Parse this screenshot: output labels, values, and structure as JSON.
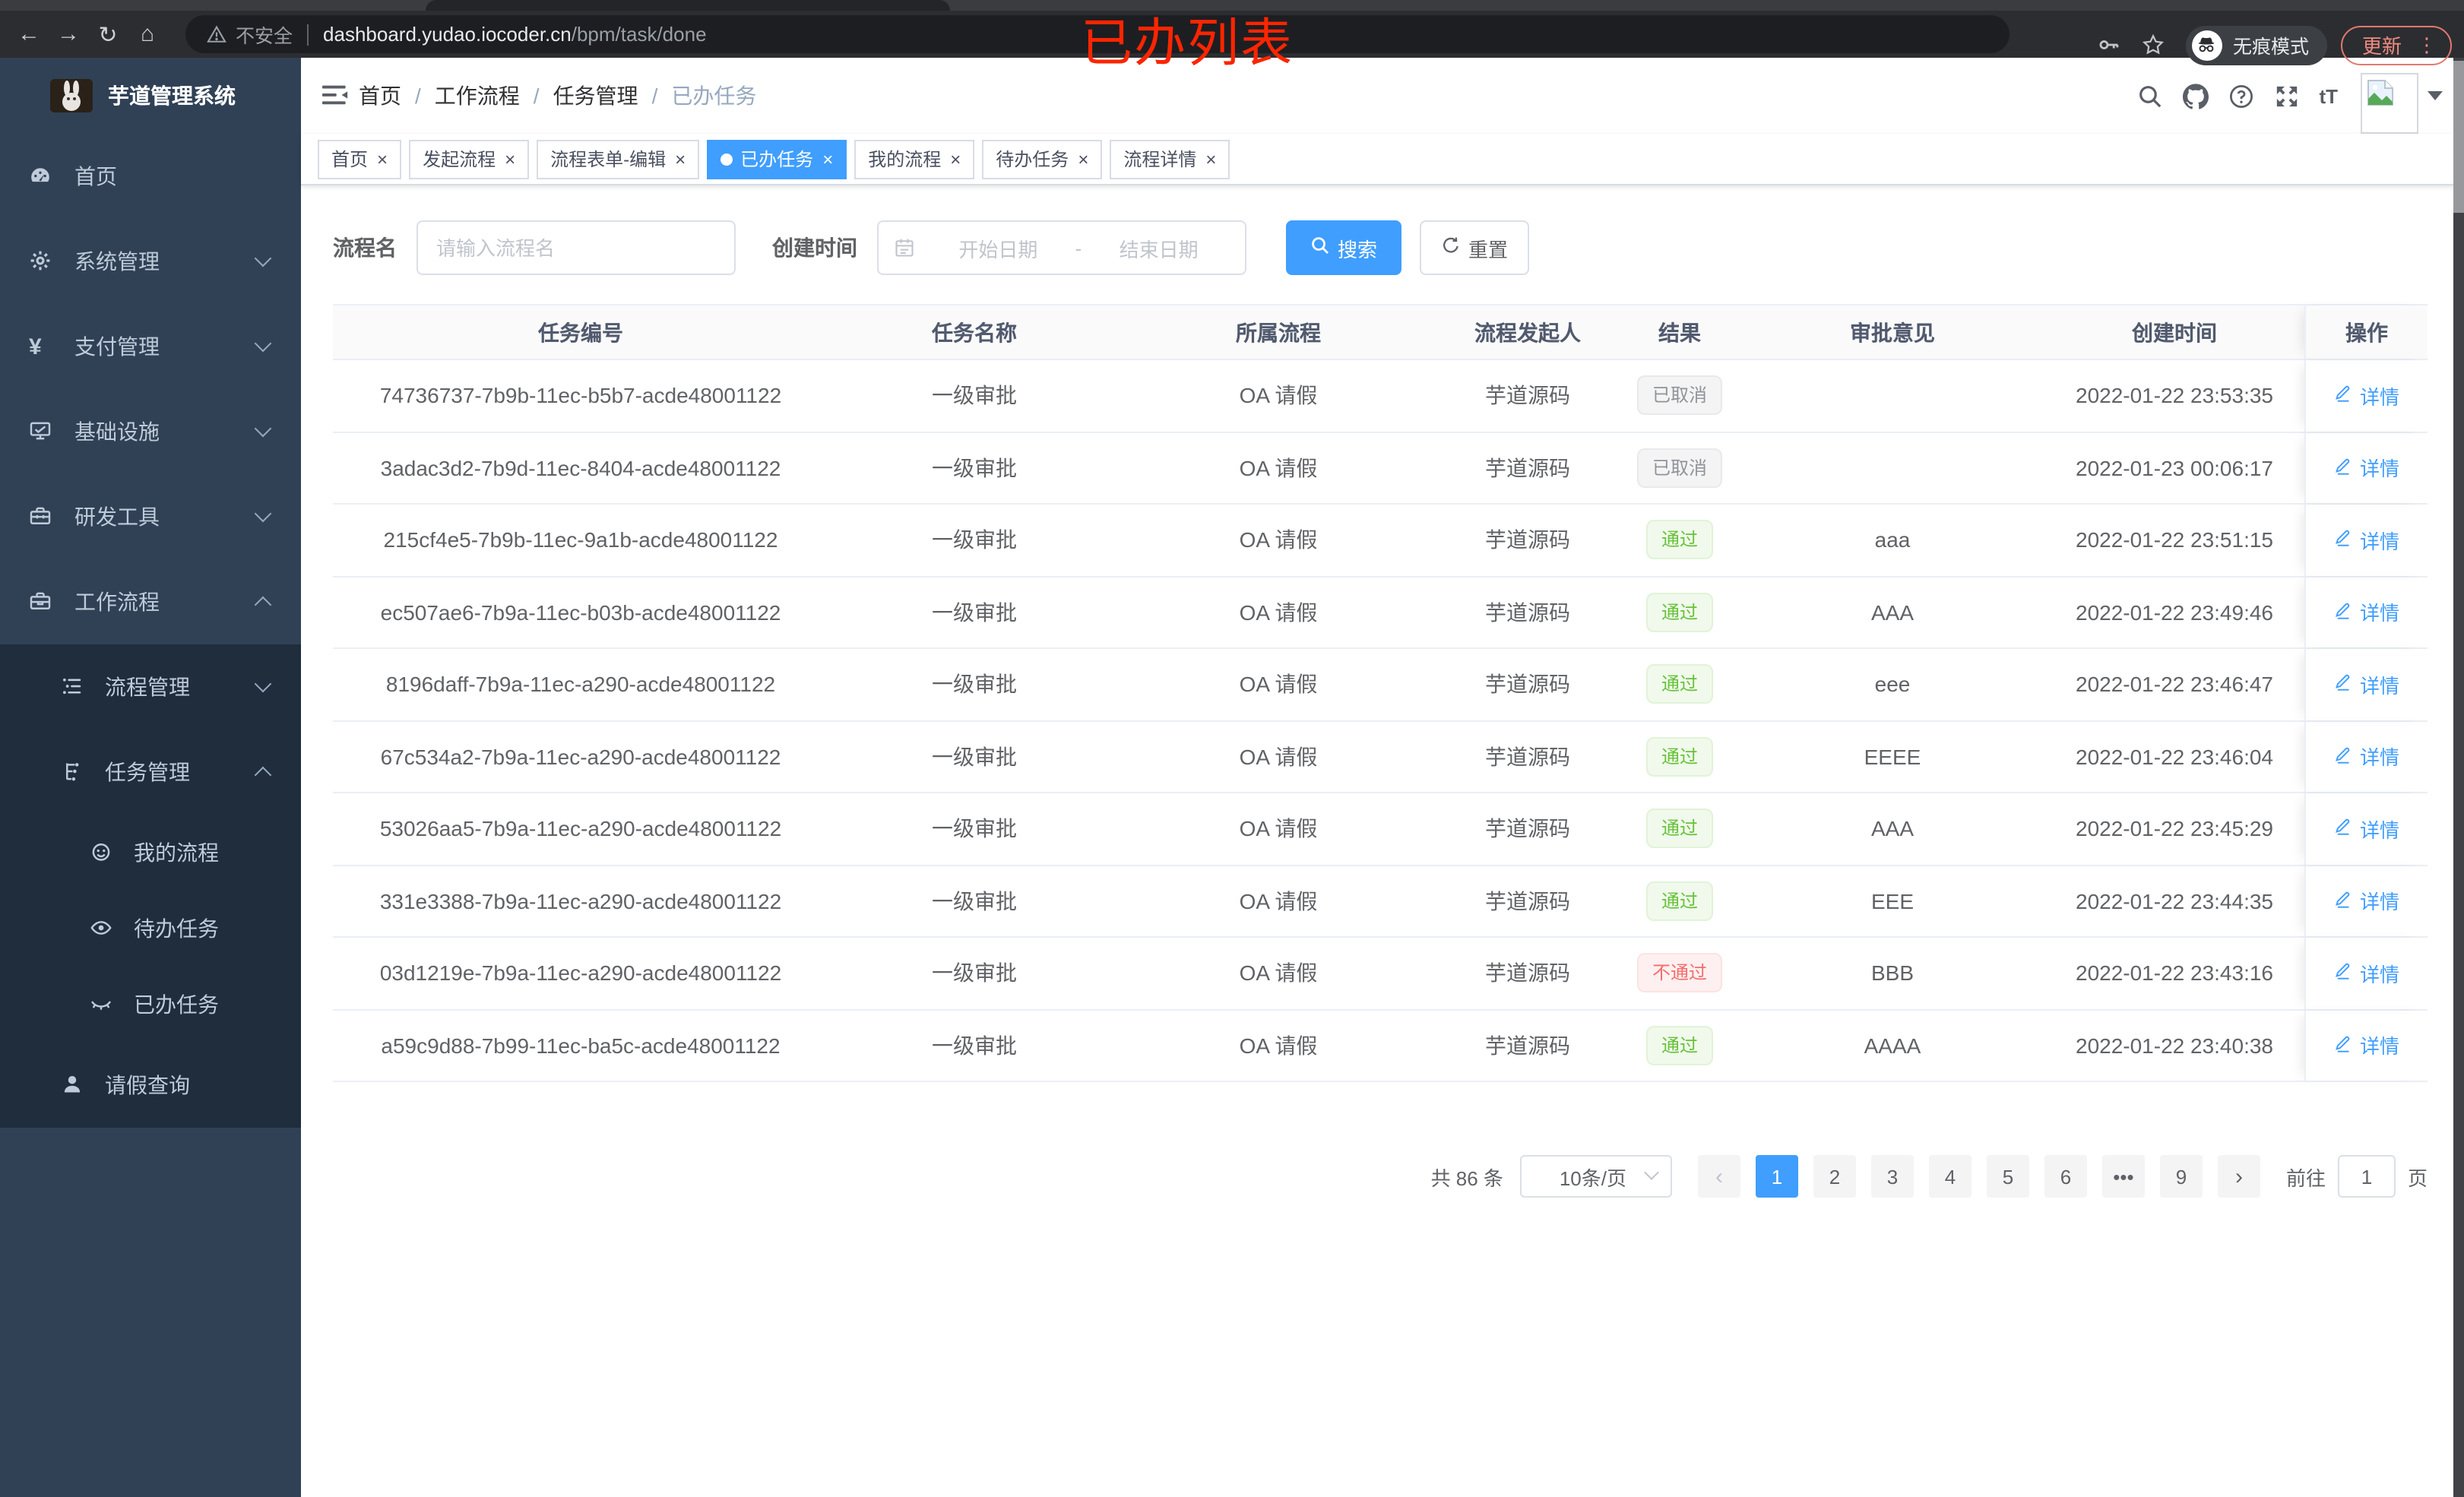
{
  "browser": {
    "security_label": "不安全",
    "url_host": "dashboard.yudao.iocoder.cn",
    "url_path": "/bpm/task/done",
    "incognito_label": "无痕模式",
    "update_label": "更新",
    "annotation": "已办列表"
  },
  "sidebar": {
    "title": "芋道管理系统",
    "roots": [
      {
        "label": "首页",
        "icon": "dashboard",
        "arrow": ""
      },
      {
        "label": "系统管理",
        "icon": "gear",
        "arrow": "down"
      },
      {
        "label": "支付管理",
        "icon": "yen",
        "arrow": "down"
      },
      {
        "label": "基础设施",
        "icon": "monitor",
        "arrow": "down"
      },
      {
        "label": "研发工具",
        "icon": "toolbox",
        "arrow": "down"
      },
      {
        "label": "工作流程",
        "icon": "briefcase",
        "arrow": "up"
      }
    ],
    "subs": [
      {
        "label": "流程管理",
        "icon": "tree",
        "arrow": "down",
        "level": "1",
        "active": false
      },
      {
        "label": "任务管理",
        "icon": "flow",
        "arrow": "up",
        "level": "1",
        "active": false
      },
      {
        "label": "我的流程",
        "icon": "robot",
        "arrow": "",
        "level": "2",
        "active": false
      },
      {
        "label": "待办任务",
        "icon": "eye-open",
        "arrow": "",
        "level": "2",
        "active": false
      },
      {
        "label": "已办任务",
        "icon": "eye-closed",
        "arrow": "",
        "level": "2",
        "active": true
      },
      {
        "label": "请假查询",
        "icon": "user",
        "arrow": "",
        "level": "1",
        "active": false
      }
    ]
  },
  "navbar": {
    "breadcrumbs": [
      "首页",
      "工作流程",
      "任务管理",
      "已办任务"
    ],
    "font_size_icon_label": "tT"
  },
  "tabs": [
    {
      "label": "首页",
      "closable": false,
      "active": false
    },
    {
      "label": "发起流程",
      "closable": true,
      "active": false
    },
    {
      "label": "流程表单-编辑",
      "closable": true,
      "active": false
    },
    {
      "label": "已办任务",
      "closable": true,
      "active": true
    },
    {
      "label": "我的流程",
      "closable": true,
      "active": false
    },
    {
      "label": "待办任务",
      "closable": true,
      "active": false
    },
    {
      "label": "流程详情",
      "closable": true,
      "active": false
    }
  ],
  "filters": {
    "name_label": "流程名",
    "name_placeholder": "请输入流程名",
    "time_label": "创建时间",
    "start_placeholder": "开始日期",
    "range_separator": "-",
    "end_placeholder": "结束日期",
    "search_label": "搜索",
    "reset_label": "重置"
  },
  "table": {
    "columns": [
      "任务编号",
      "任务名称",
      "所属流程",
      "流程发起人",
      "结果",
      "审批意见",
      "创建时间",
      "操作"
    ],
    "action_label": "详情",
    "rows": [
      {
        "id": "74736737-7b9b-11ec-b5b7-acde48001122",
        "name": "一级审批",
        "process": "OA 请假",
        "starter": "芋道源码",
        "result": "已取消",
        "result_type": "info",
        "comment": "",
        "created": "2022-01-22 23:53:35"
      },
      {
        "id": "3adac3d2-7b9d-11ec-8404-acde48001122",
        "name": "一级审批",
        "process": "OA 请假",
        "starter": "芋道源码",
        "result": "已取消",
        "result_type": "info",
        "comment": "",
        "created": "2022-01-23 00:06:17"
      },
      {
        "id": "215cf4e5-7b9b-11ec-9a1b-acde48001122",
        "name": "一级审批",
        "process": "OA 请假",
        "starter": "芋道源码",
        "result": "通过",
        "result_type": "success",
        "comment": "aaa",
        "created": "2022-01-22 23:51:15"
      },
      {
        "id": "ec507ae6-7b9a-11ec-b03b-acde48001122",
        "name": "一级审批",
        "process": "OA 请假",
        "starter": "芋道源码",
        "result": "通过",
        "result_type": "success",
        "comment": "AAA",
        "created": "2022-01-22 23:49:46"
      },
      {
        "id": "8196daff-7b9a-11ec-a290-acde48001122",
        "name": "一级审批",
        "process": "OA 请假",
        "starter": "芋道源码",
        "result": "通过",
        "result_type": "success",
        "comment": "eee",
        "created": "2022-01-22 23:46:47"
      },
      {
        "id": "67c534a2-7b9a-11ec-a290-acde48001122",
        "name": "一级审批",
        "process": "OA 请假",
        "starter": "芋道源码",
        "result": "通过",
        "result_type": "success",
        "comment": "EEEE",
        "created": "2022-01-22 23:46:04"
      },
      {
        "id": "53026aa5-7b9a-11ec-a290-acde48001122",
        "name": "一级审批",
        "process": "OA 请假",
        "starter": "芋道源码",
        "result": "通过",
        "result_type": "success",
        "comment": "AAA",
        "created": "2022-01-22 23:45:29"
      },
      {
        "id": "331e3388-7b9a-11ec-a290-acde48001122",
        "name": "一级审批",
        "process": "OA 请假",
        "starter": "芋道源码",
        "result": "通过",
        "result_type": "success",
        "comment": "EEE",
        "created": "2022-01-22 23:44:35"
      },
      {
        "id": "03d1219e-7b9a-11ec-a290-acde48001122",
        "name": "一级审批",
        "process": "OA 请假",
        "starter": "芋道源码",
        "result": "不通过",
        "result_type": "danger",
        "comment": "BBB",
        "created": "2022-01-22 23:43:16"
      },
      {
        "id": "a59c9d88-7b99-11ec-ba5c-acde48001122",
        "name": "一级审批",
        "process": "OA 请假",
        "starter": "芋道源码",
        "result": "通过",
        "result_type": "success",
        "comment": "AAAA",
        "created": "2022-01-22 23:40:38"
      }
    ]
  },
  "pagination": {
    "total": "共 86 条",
    "page_size": "10条/页",
    "prev": "‹",
    "next": "›",
    "pages": [
      {
        "label": "1",
        "active": true
      },
      {
        "label": "2",
        "active": false
      },
      {
        "label": "3",
        "active": false
      },
      {
        "label": "4",
        "active": false
      },
      {
        "label": "5",
        "active": false
      },
      {
        "label": "6",
        "active": false
      },
      {
        "label": "•••",
        "active": false
      },
      {
        "label": "9",
        "active": false
      }
    ],
    "goto_label": "前往",
    "goto_value": "1",
    "goto_unit": "页"
  },
  "theme": {
    "accent": "#409eff",
    "sidebar_bg": "#304156",
    "sidebar_nest_bg": "#1f2d3d",
    "sidebar_text": "#bfcbd9",
    "success_text": "#67c23a",
    "danger_text": "#f56c6c",
    "info_text": "#909399",
    "annotation_red": "#fb2500"
  }
}
